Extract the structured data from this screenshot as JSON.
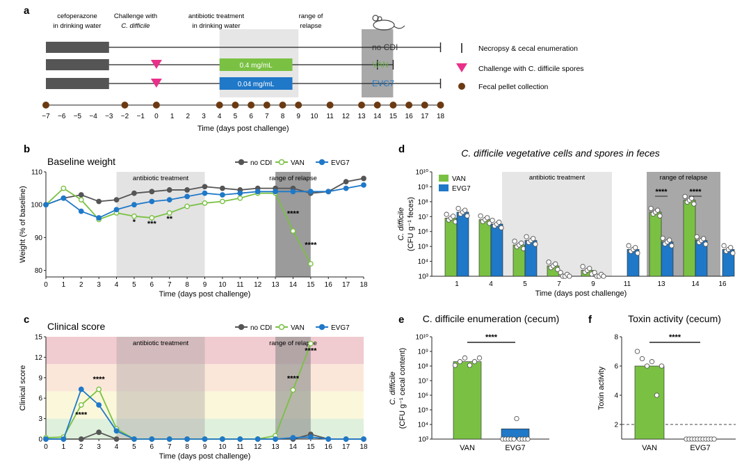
{
  "panel_a": {
    "label": "a",
    "headers": {
      "cefo_line1": "cefoperazone",
      "cefo_line2": "in drinking water",
      "challenge_line1": "Challenge with",
      "challenge_line2": "C. difficile",
      "abx_line1": "antibiotic treatment",
      "abx_line2": "in drinking water",
      "relapse_line1": "range of",
      "relapse_line2": "relapse"
    },
    "rows": [
      {
        "name": "no CDI",
        "color": "#333333",
        "end_day": 18
      },
      {
        "name": "VAN",
        "color": "#6ab04c",
        "end_day": 15,
        "dose": "0.4 mg/mL",
        "dose_color": "#7ac143",
        "necropsy_day": 14
      },
      {
        "name": "EVG7",
        "color": "#1f78c8",
        "end_day": 18,
        "dose": "0.04 mg/mL",
        "dose_color": "#1f78c8"
      }
    ],
    "legend": [
      {
        "symbol": "bar",
        "text": "Necropsy & cecal enumeration"
      },
      {
        "symbol": "triangle",
        "text": "Challenge with C. difficile spores"
      },
      {
        "symbol": "dot",
        "text": "Fecal pellet collection"
      }
    ],
    "days": [
      -7,
      -6,
      -5,
      -4,
      -3,
      -2,
      -1,
      0,
      1,
      2,
      3,
      4,
      5,
      6,
      7,
      8,
      9,
      10,
      11,
      12,
      13,
      14,
      15,
      16,
      17,
      18
    ],
    "pellet_days": [
      -7,
      -2,
      0,
      4,
      5,
      6,
      7,
      8,
      9,
      11,
      13,
      14,
      15,
      16,
      17,
      18
    ],
    "xlabel": "Time (days post challenge)"
  },
  "chart_data": [
    {
      "panel": "b",
      "type": "line",
      "title": "Baseline weight",
      "xlabel": "Time (days post challenge)",
      "ylabel": "Weight (% of baseline)",
      "xlim": [
        0,
        18
      ],
      "ylim": [
        78,
        110
      ],
      "yticks": [
        80,
        90,
        100,
        110
      ],
      "shade_treatment": [
        4,
        9
      ],
      "shade_relapse": [
        13,
        15
      ],
      "shade_label_treatment": "antibiotic treatment",
      "shade_label_relapse": "range of relapse",
      "series": [
        {
          "name": "no CDI",
          "color": "#555555",
          "x": [
            0,
            1,
            2,
            3,
            4,
            5,
            6,
            7,
            8,
            9,
            10,
            11,
            12,
            13,
            14,
            15,
            16,
            17,
            18
          ],
          "y": [
            100,
            102,
            103,
            101,
            101.5,
            103.5,
            104,
            104.5,
            104.5,
            105.5,
            105,
            104.5,
            105,
            105,
            105,
            103.5,
            104,
            107,
            108
          ]
        },
        {
          "name": "VAN",
          "color": "#7ac143",
          "x": [
            0,
            1,
            2,
            3,
            4,
            5,
            6,
            7,
            8,
            9,
            10,
            11,
            12,
            13,
            14,
            15
          ],
          "y": [
            100,
            105,
            101.5,
            95.5,
            97.5,
            96.5,
            96,
            97.5,
            99.5,
            100.5,
            101,
            102,
            103.5,
            103.5,
            92,
            82
          ]
        },
        {
          "name": "EVG7",
          "color": "#1f78c8",
          "x": [
            0,
            1,
            2,
            3,
            4,
            5,
            6,
            7,
            8,
            9,
            10,
            11,
            12,
            13,
            14,
            15,
            16,
            17,
            18
          ],
          "y": [
            100,
            102,
            98,
            96,
            98.5,
            100,
            101,
            101.5,
            102.5,
            103.5,
            103,
            103.5,
            104,
            104,
            104,
            104,
            104,
            105,
            106
          ]
        }
      ],
      "annotations": [
        {
          "x": 5,
          "y": 94,
          "text": "*"
        },
        {
          "x": 6,
          "y": 93.5,
          "text": "***"
        },
        {
          "x": 7,
          "y": 95,
          "text": "**"
        },
        {
          "x": 14,
          "y": 96.5,
          "text": "****"
        },
        {
          "x": 15,
          "y": 87,
          "text": "****"
        }
      ]
    },
    {
      "panel": "c",
      "type": "line",
      "title": "Clinical score",
      "xlabel": "Time (days post challenge)",
      "ylabel": "Clinical score",
      "xlim": [
        0,
        18
      ],
      "ylim": [
        0,
        15
      ],
      "yticks": [
        0,
        3,
        6,
        9,
        12,
        15
      ],
      "score_bands": [
        {
          "from": 0,
          "to": 3,
          "color": "#dff0dc"
        },
        {
          "from": 3,
          "to": 7,
          "color": "#fbf7da"
        },
        {
          "from": 7,
          "to": 11,
          "color": "#fbe7da"
        },
        {
          "from": 11,
          "to": 15,
          "color": "#f0cbd0"
        }
      ],
      "shade_treatment": [
        4,
        9
      ],
      "shade_relapse": [
        13,
        15
      ],
      "shade_label_treatment": "antibiotic treatment",
      "shade_label_relapse": "range of relapse",
      "series": [
        {
          "name": "no CDI",
          "color": "#555555",
          "x": [
            0,
            1,
            2,
            3,
            4,
            5,
            6,
            7,
            8,
            9,
            10,
            11,
            12,
            13,
            14,
            15,
            16,
            17,
            18
          ],
          "y": [
            0,
            0,
            0,
            1,
            0,
            0,
            0,
            0,
            0,
            0,
            0,
            0,
            0,
            0,
            0,
            0.7,
            0,
            0,
            0
          ]
        },
        {
          "name": "VAN",
          "color": "#7ac143",
          "x": [
            0,
            1,
            2,
            3,
            4,
            5,
            6,
            7,
            8,
            9,
            10,
            11,
            12,
            13,
            14,
            15
          ],
          "y": [
            0.2,
            0.3,
            5,
            7.3,
            1.5,
            0,
            0,
            0,
            0,
            0,
            0,
            0,
            0,
            0.5,
            7.2,
            14
          ]
        },
        {
          "name": "EVG7",
          "color": "#1f78c8",
          "x": [
            0,
            1,
            2,
            3,
            4,
            5,
            6,
            7,
            8,
            9,
            10,
            11,
            12,
            13,
            14,
            15,
            16,
            17,
            18
          ],
          "y": [
            0,
            0,
            7.3,
            5,
            1.2,
            0,
            0,
            0,
            0,
            0,
            0,
            0,
            0,
            0,
            0.2,
            0.3,
            0,
            0,
            0
          ]
        }
      ],
      "annotations": [
        {
          "x": 2,
          "y": 3.2,
          "text": "****"
        },
        {
          "x": 3,
          "y": 8.4,
          "text": "****"
        },
        {
          "x": 14,
          "y": 8.5,
          "text": "****"
        },
        {
          "x": 15,
          "y": 12.6,
          "text": "****"
        }
      ]
    },
    {
      "panel": "d",
      "type": "bar",
      "title": "C. difficile vegetative cells and spores in feces",
      "xlabel": "Time (days post challenge)",
      "ylabel_line1": "C. difficile",
      "ylabel_line2": "(CFU g⁻¹ feces)",
      "scale": "log10",
      "ylim_exp": [
        3,
        10
      ],
      "categories": [
        "1",
        "4",
        "5",
        "7",
        "9",
        "11",
        "13",
        "14",
        "16"
      ],
      "shade_treatment_label": "antibiotic treatment",
      "shade_relapse_label": "range of relapse",
      "series": [
        {
          "name": "VAN",
          "color": "#7ac143",
          "values_exp": [
            6.9,
            6.8,
            5.1,
            3.7,
            3.4,
            null,
            7.3,
            8.1,
            null
          ]
        },
        {
          "name": "EVG7",
          "color": "#1f78c8",
          "values_exp": [
            7.3,
            6.5,
            5.4,
            3,
            3,
            4.8,
            5.3,
            5.4,
            4.8
          ]
        }
      ],
      "annotations": [
        {
          "category": "13",
          "text": "****"
        },
        {
          "category": "14",
          "text": "****"
        }
      ]
    },
    {
      "panel": "e",
      "type": "bar",
      "title": "C. difficile enumeration (cecum)",
      "ylabel_line1": "C. difficile",
      "ylabel_line2": "(CFU g⁻¹ cecal content)",
      "scale": "log10",
      "ylim_exp": [
        3,
        10
      ],
      "categories": [
        "VAN",
        "EVG7"
      ],
      "values_exp": [
        8.3,
        3.7
      ],
      "colors": [
        "#7ac143",
        "#1f78c8"
      ],
      "significance": "****"
    },
    {
      "panel": "f",
      "type": "bar",
      "title": "Toxin activity (cecum)",
      "ylabel": "Toxin activity",
      "ylim": [
        1,
        8
      ],
      "yticks": [
        2,
        4,
        6,
        8
      ],
      "categories": [
        "VAN",
        "EVG7"
      ],
      "values": [
        6,
        1
      ],
      "colors": [
        "#7ac143",
        "#1f78c8"
      ],
      "threshold": 2,
      "significance": "****"
    }
  ]
}
